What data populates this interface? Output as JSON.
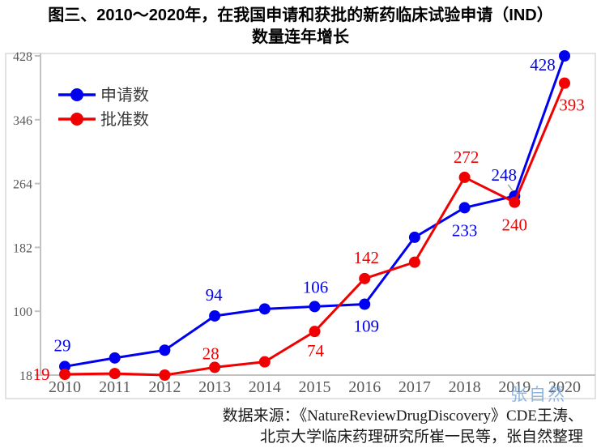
{
  "title": {
    "line1": "图三、2010～2020年，在我国申请和获批的新药临床试验申请（IND）",
    "line2": "数量连年增长"
  },
  "chart_data": {
    "type": "line",
    "x": [
      2010,
      2011,
      2012,
      2013,
      2014,
      2015,
      2016,
      2017,
      2018,
      2019,
      2020
    ],
    "series": [
      {
        "name": "申请数",
        "color": "#0000f0",
        "values": [
          29,
          40,
          50,
          94,
          103,
          106,
          109,
          195,
          233,
          248,
          428
        ],
        "labels": [
          {
            "year": 2010,
            "text": "29",
            "dx": -3,
            "dy": -19
          },
          {
            "year": 2013,
            "text": "94",
            "dx": -1,
            "dy": -19
          },
          {
            "year": 2015,
            "text": "106",
            "dx": 1,
            "dy": -17
          },
          {
            "year": 2016,
            "text": "109",
            "dx": 2,
            "dy": 34
          },
          {
            "year": 2018,
            "text": "233",
            "dx": 0,
            "dy": 35
          },
          {
            "year": 2019,
            "text": "248",
            "dx": -13,
            "dy": -19,
            "leader": true
          },
          {
            "year": 2020,
            "text": "428",
            "dx": -27,
            "dy": 18
          }
        ]
      },
      {
        "name": "批准数",
        "color": "#f00000",
        "values": [
          19,
          20,
          18,
          28,
          35,
          74,
          142,
          163,
          272,
          240,
          393
        ],
        "labels": [
          {
            "year": 2010,
            "text": "19",
            "dx": -29,
            "dy": 7
          },
          {
            "year": 2013,
            "text": "28",
            "dx": -5,
            "dy": -10
          },
          {
            "year": 2015,
            "text": "74",
            "dx": 1,
            "dy": 31
          },
          {
            "year": 2016,
            "text": "142",
            "dx": 2,
            "dy": -19
          },
          {
            "year": 2018,
            "text": "272",
            "dx": 2,
            "dy": -18
          },
          {
            "year": 2019,
            "text": "240",
            "dx": 0,
            "dy": 35
          },
          {
            "year": 2020,
            "text": "393",
            "dx": 9,
            "dy": 34
          }
        ]
      }
    ],
    "yticks": [
      18,
      100,
      182,
      264,
      346,
      428
    ],
    "ylim": [
      18,
      428
    ],
    "xlabel": "",
    "ylabel": "",
    "grid": false,
    "legend_position": "top-left"
  },
  "source": {
    "line1": "数据来源：《NatureReviewDrugDiscovery》CDE王涛、",
    "line2": "北京大学临床药理研究所崔一民等，张自然整理"
  },
  "watermark": {
    "text": "张自然"
  }
}
